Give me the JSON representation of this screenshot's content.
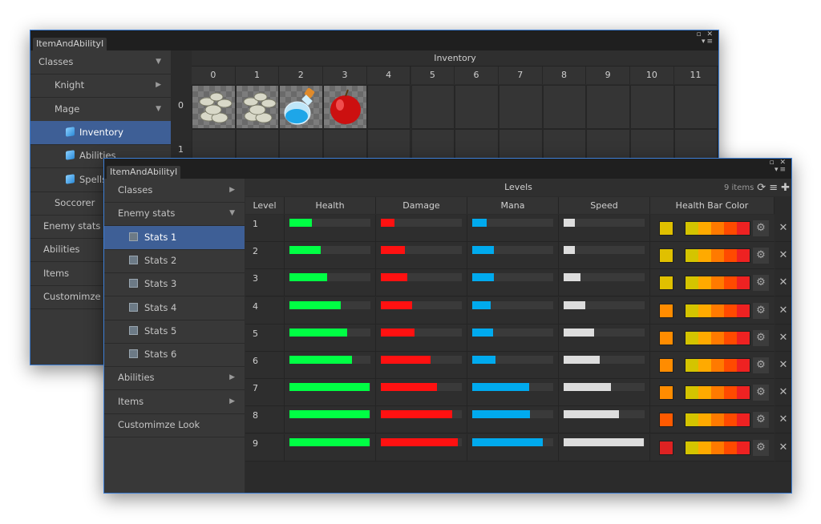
{
  "back_window": {
    "tab_title": "ItemAndAbilityI",
    "sidebar": [
      {
        "label": "Classes",
        "arrow": "▼"
      },
      {
        "label": "Knight",
        "arrow": "▶"
      },
      {
        "label": "Mage",
        "arrow": "▼"
      },
      {
        "label": "Inventory",
        "arrow": "",
        "selected": true
      },
      {
        "label": "Abilities",
        "arrow": ""
      },
      {
        "label": "Spells",
        "arrow": ""
      },
      {
        "label": "Soccorer",
        "arrow": ""
      },
      {
        "label": "Enemy stats",
        "arrow": ""
      },
      {
        "label": "Abilities",
        "arrow": ""
      },
      {
        "label": "Items",
        "arrow": ""
      },
      {
        "label": "Customimze",
        "arrow": ""
      }
    ],
    "inventory": {
      "title": "Inventory",
      "columns": [
        "0",
        "1",
        "2",
        "3",
        "4",
        "5",
        "6",
        "7",
        "8",
        "9",
        "10",
        "11"
      ],
      "rows": [
        "0",
        "1"
      ],
      "items": [
        {
          "col": 0,
          "icon": "coins-icon"
        },
        {
          "col": 1,
          "icon": "coins-icon"
        },
        {
          "col": 2,
          "icon": "potion-icon"
        },
        {
          "col": 3,
          "icon": "apple-icon"
        }
      ]
    }
  },
  "front_window": {
    "tab_title": "ItemAndAbilityI",
    "sidebar": [
      {
        "label": "Classes",
        "arrow": "▶"
      },
      {
        "label": "Enemy stats",
        "arrow": "▼"
      },
      {
        "label": "Stats 1",
        "arrow": "",
        "selected": true
      },
      {
        "label": "Stats 2",
        "arrow": ""
      },
      {
        "label": "Stats 3",
        "arrow": ""
      },
      {
        "label": "Stats 4",
        "arrow": ""
      },
      {
        "label": "Stats 5",
        "arrow": ""
      },
      {
        "label": "Stats 6",
        "arrow": ""
      },
      {
        "label": "Abilities",
        "arrow": "▶"
      },
      {
        "label": "Items",
        "arrow": "▶"
      },
      {
        "label": "Customimze Look",
        "arrow": ""
      }
    ],
    "levels": {
      "title": "Levels",
      "count_text": "9 items",
      "headers": [
        "Level",
        "Health",
        "Damage",
        "Mana",
        "Speed",
        "Health Bar Color"
      ],
      "bar_colors": {
        "health": "#00ff44",
        "damage": "#ff1111",
        "mana": "#00aaee",
        "speed": "#dddddd"
      },
      "gradient": [
        "#d4c400",
        "#ffaa00",
        "#ff7a00",
        "#ff4a00",
        "#ee2222"
      ],
      "rows": [
        {
          "level": "1",
          "health": 0.28,
          "damage": 0.17,
          "mana": 0.18,
          "speed": 0.14,
          "swatch": "#e0c000"
        },
        {
          "level": "2",
          "health": 0.39,
          "damage": 0.3,
          "mana": 0.27,
          "speed": 0.14,
          "swatch": "#e0c000"
        },
        {
          "level": "3",
          "health": 0.47,
          "damage": 0.33,
          "mana": 0.27,
          "speed": 0.21,
          "swatch": "#e0c000"
        },
        {
          "level": "4",
          "health": 0.63,
          "damage": 0.39,
          "mana": 0.23,
          "speed": 0.27,
          "swatch": "#ff8c00"
        },
        {
          "level": "5",
          "health": 0.71,
          "damage": 0.42,
          "mana": 0.26,
          "speed": 0.38,
          "swatch": "#ff8c00"
        },
        {
          "level": "6",
          "health": 0.77,
          "damage": 0.61,
          "mana": 0.29,
          "speed": 0.45,
          "swatch": "#ff8c00"
        },
        {
          "level": "7",
          "health": 0.99,
          "damage": 0.69,
          "mana": 0.7,
          "speed": 0.58,
          "swatch": "#ff8c00"
        },
        {
          "level": "8",
          "health": 0.99,
          "damage": 0.88,
          "mana": 0.71,
          "speed": 0.68,
          "swatch": "#ff5a00"
        },
        {
          "level": "9",
          "health": 0.99,
          "damage": 0.95,
          "mana": 0.87,
          "speed": 0.99,
          "swatch": "#dd2222"
        }
      ]
    }
  }
}
